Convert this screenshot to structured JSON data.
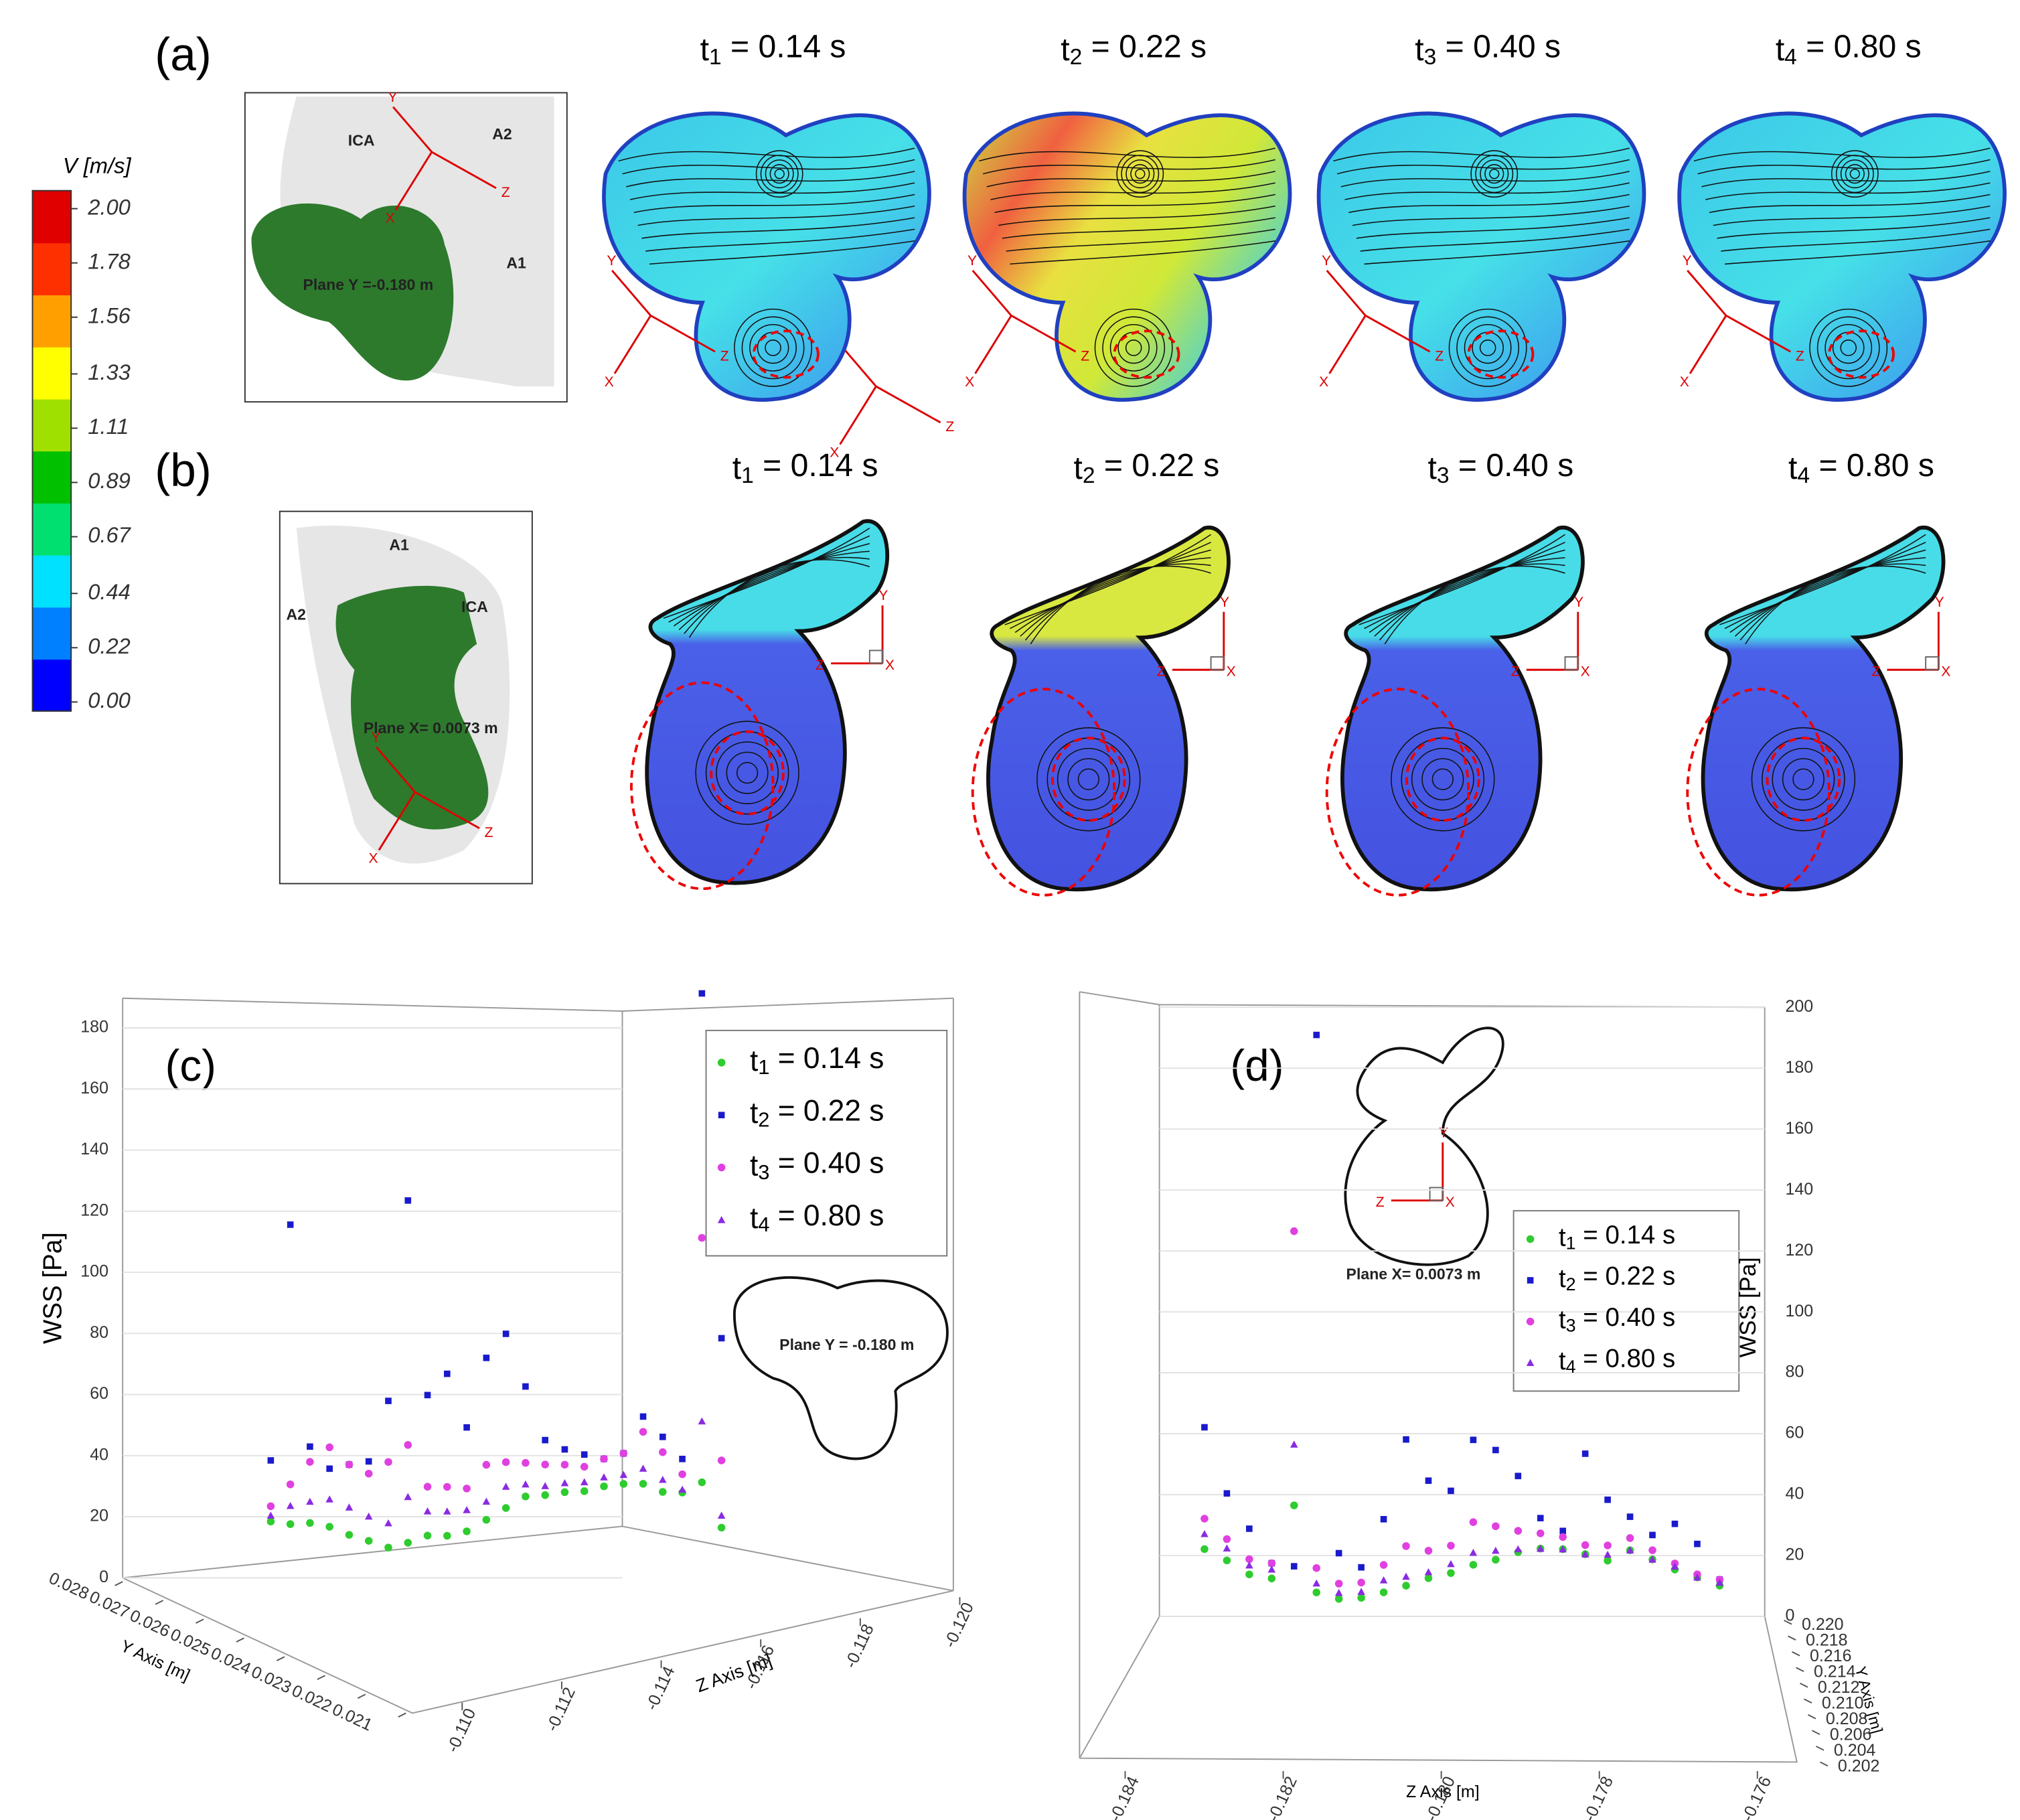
{
  "figure": {
    "panels": {
      "a": "(a)",
      "b": "(b)",
      "c": "(c)",
      "d": "(d)"
    },
    "row_a_times": [
      "t1 = 0.14 s",
      "t2 = 0.22 s",
      "t3 = 0.40 s",
      "t4 = 0.80 s"
    ],
    "row_b_times": [
      "t1 = 0.14 s",
      "t2 = 0.22 s",
      "t3 = 0.40 s",
      "t4 = 0.80 s"
    ],
    "axis_glyph": {
      "x": "X",
      "y": "Y",
      "z": "Z"
    },
    "inset_a": {
      "labels": [
        "ICA",
        "A2",
        "A1"
      ],
      "plane": "Plane Y =-0.180 m"
    },
    "inset_b": {
      "labels": [
        "A1",
        "A2",
        "ICA"
      ],
      "plane": "Plane X= 0.0073 m"
    },
    "inset_c_plane": "Plane Y = -0.180 m",
    "inset_d_plane": "Plane X= 0.0073 m",
    "colorbar": {
      "title": "V [m/s]",
      "lim": [
        0,
        2
      ],
      "colors": [
        "#0000ff",
        "#0080ff",
        "#00e0ff",
        "#00e070",
        "#00c000",
        "#a0e000",
        "#ffff00",
        "#ffa000",
        "#ff3000",
        "#e00000"
      ],
      "ticks": [
        {
          "value": 2,
          "label": "2.00"
        },
        {
          "value": 1.78,
          "label": "1.78"
        },
        {
          "value": 1.56,
          "label": "1.56"
        },
        {
          "value": 1.33,
          "label": "1.33"
        },
        {
          "value": 1.11,
          "label": "1.11"
        },
        {
          "value": 0.89,
          "label": "0.89"
        },
        {
          "value": 0.67,
          "label": "0.67"
        },
        {
          "value": 0.44,
          "label": "0.44"
        },
        {
          "value": 0.22,
          "label": "0.22"
        },
        {
          "value": 0,
          "label": "0.00"
        }
      ]
    }
  },
  "chart_data": [
    {
      "type": "scatter",
      "ylabel": "WSS [Pa]",
      "ylabel_words": [
        "[Pa]",
        "WSS"
      ],
      "zlabel": "Z Axis [m]",
      "xlabel": "Y Axis [m]",
      "ylim": [
        0,
        180
      ],
      "yticks": [
        0,
        20,
        40,
        60,
        80,
        100,
        120,
        140,
        160,
        180
      ],
      "xlim": [
        0.028,
        0.021
      ],
      "xticks": [
        {
          "value": 0.021,
          "label": "0.021"
        },
        {
          "value": 0.022,
          "label": "0.022"
        },
        {
          "value": 0.023,
          "label": "0.023"
        },
        {
          "value": 0.024,
          "label": "0.024"
        },
        {
          "value": 0.025,
          "label": "0.025"
        },
        {
          "value": 0.026,
          "label": "0.026"
        },
        {
          "value": 0.027,
          "label": "0.027"
        },
        {
          "value": 0.028,
          "label": "0.028"
        }
      ],
      "zlim": [
        -0.109,
        -0.12
      ],
      "zticks": [
        {
          "value": -0.11,
          "label": "-0.110"
        },
        {
          "value": -0.112,
          "label": "-0.112"
        },
        {
          "value": -0.114,
          "label": "-0.114"
        },
        {
          "value": -0.116,
          "label": "-0.116"
        },
        {
          "value": -0.118,
          "label": "-0.118"
        },
        {
          "value": -0.12,
          "label": "-0.120"
        }
      ],
      "series": [
        {
          "name": "t1 = 0.14 s",
          "color": "#2ecc2e",
          "marker": "circle",
          "values": [
            10,
            12,
            15,
            16,
            15,
            14,
            12,
            13,
            14,
            12,
            11,
            12,
            13,
            14,
            12,
            11,
            10,
            11,
            12,
            13,
            12,
            14,
            20,
            8
          ]
        },
        {
          "name": "t2 = 0.22 s",
          "color": "#1a1acc",
          "marker": "square",
          "values": [
            30,
            110,
            40,
            35,
            38,
            40,
            60,
            125,
            60,
            65,
            45,
            65,
            70,
            50,
            30,
            25,
            22,
            20,
            22,
            35,
            30,
            25,
            180,
            70
          ]
        },
        {
          "name": "t3 = 0.40 s",
          "color": "#e040e0",
          "marker": "circle",
          "values": [
            15,
            25,
            35,
            42,
            38,
            36,
            40,
            45,
            30,
            28,
            25,
            30,
            28,
            25,
            22,
            20,
            18,
            20,
            22,
            30,
            25,
            20,
            100,
            30
          ]
        },
        {
          "name": "t4 = 0.80 s",
          "color": "#8a2be2",
          "marker": "triangle",
          "values": [
            12,
            18,
            22,
            25,
            24,
            22,
            20,
            28,
            22,
            20,
            18,
            18,
            20,
            18,
            15,
            14,
            13,
            14,
            15,
            18,
            16,
            15,
            40,
            12
          ]
        }
      ]
    },
    {
      "type": "scatter",
      "ylabel": "WSS [Pa]",
      "zlabel": "Z Axis [m]",
      "xlabel": "Y Axis [m]",
      "ylim": [
        0,
        200
      ],
      "yticks": [
        0,
        20,
        40,
        60,
        80,
        100,
        120,
        140,
        160,
        180,
        200
      ],
      "xlim": [
        0.22,
        0.202
      ],
      "xticks": [
        {
          "value": 0.202,
          "label": "0.202"
        },
        {
          "value": 0.204,
          "label": "0.204"
        },
        {
          "value": 0.206,
          "label": "0.206"
        },
        {
          "value": 0.208,
          "label": "0.208"
        },
        {
          "value": 0.21,
          "label": "0.210"
        },
        {
          "value": 0.212,
          "label": "0.212"
        },
        {
          "value": 0.214,
          "label": "0.214"
        },
        {
          "value": 0.216,
          "label": "0.216"
        },
        {
          "value": 0.218,
          "label": "0.218"
        },
        {
          "value": 0.22,
          "label": "0.220"
        }
      ],
      "zlim": [
        -0.1843,
        -0.1755
      ],
      "zticks": [
        {
          "value": -0.184,
          "label": "-0.184"
        },
        {
          "value": -0.182,
          "label": "-0.182"
        },
        {
          "value": -0.18,
          "label": "-0.180"
        },
        {
          "value": -0.178,
          "label": "-0.178"
        },
        {
          "value": -0.176,
          "label": "-0.176"
        }
      ],
      "series": [
        {
          "name": "t1 = 0.14 s",
          "color": "#2ecc2e",
          "marker": "circle",
          "values": [
            20,
            18,
            15,
            15,
            40,
            12,
            10,
            10,
            11,
            12,
            13,
            13,
            14,
            14,
            15,
            15,
            14,
            12,
            10,
            14,
            12,
            10,
            9,
            8
          ]
        },
        {
          "name": "t2 = 0.22 s",
          "color": "#1a1acc",
          "marker": "square",
          "values": [
            60,
            40,
            30,
            20,
            20,
            195,
            25,
            20,
            35,
            60,
            45,
            40,
            55,
            50,
            40,
            25,
            20,
            45,
            30,
            25,
            20,
            25,
            20,
            10
          ]
        },
        {
          "name": "t3 = 0.40 s",
          "color": "#e040e0",
          "marker": "circle",
          "values": [
            30,
            25,
            20,
            20,
            130,
            20,
            15,
            15,
            20,
            25,
            22,
            22,
            28,
            25,
            22,
            20,
            18,
            15,
            15,
            18,
            15,
            12,
            10,
            10
          ]
        },
        {
          "name": "t4 = 0.80 s",
          "color": "#8a2be2",
          "marker": "triangle",
          "values": [
            25,
            22,
            18,
            18,
            60,
            15,
            12,
            12,
            15,
            15,
            15,
            16,
            18,
            17,
            16,
            15,
            14,
            12,
            12,
            14,
            12,
            11,
            9,
            9
          ]
        }
      ]
    }
  ]
}
